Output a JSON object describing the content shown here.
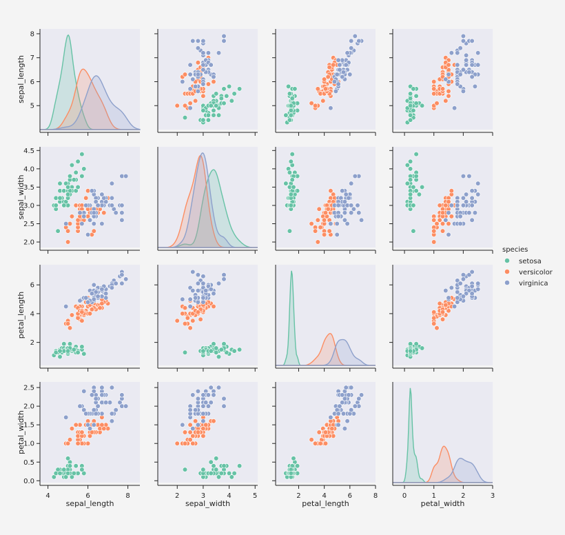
{
  "chart_data": {
    "type": "scatter",
    "title": "",
    "figure_kind": "pairplot",
    "variables": [
      "sepal_length",
      "sepal_width",
      "petal_length",
      "petal_width"
    ],
    "axis_ticks": {
      "sepal_length": [
        4,
        6,
        8
      ],
      "sepal_width": [
        2,
        3,
        4,
        5
      ],
      "petal_length": [
        2,
        4,
        6,
        8
      ],
      "petal_width": [
        0,
        1,
        2,
        3
      ]
    },
    "axis_ticks_y": {
      "sepal_length": [
        5,
        6,
        7,
        8
      ],
      "sepal_width": [
        2.0,
        2.5,
        3.0,
        3.5,
        4.0,
        4.5
      ],
      "petal_length": [
        2,
        4,
        6
      ],
      "petal_width": [
        0.0,
        0.5,
        1.0,
        1.5,
        2.0,
        2.5
      ]
    },
    "axis_ranges": {
      "sepal_length": [
        3.6,
        8.6
      ],
      "sepal_width": [
        1.25,
        5.1
      ],
      "petal_length": [
        0.2,
        8.0
      ],
      "petal_width": [
        -0.4,
        3.0
      ]
    },
    "axis_ranges_y": {
      "sepal_length": [
        4.0,
        8.2
      ],
      "sepal_width": [
        1.85,
        4.6
      ],
      "petal_length": [
        0.4,
        7.4
      ],
      "petal_width": [
        -0.05,
        2.65
      ]
    },
    "legend": {
      "title": "species",
      "placement": "right",
      "entries": [
        {
          "name": "setosa",
          "color": "#66c2a5"
        },
        {
          "name": "versicolor",
          "color": "#fc8d62"
        },
        {
          "name": "virginica",
          "color": "#8da0cb"
        }
      ]
    },
    "diag_kind": "kde",
    "series": [
      {
        "name": "setosa",
        "points": [
          [
            5.1,
            3.5,
            1.4,
            0.2
          ],
          [
            4.9,
            3.0,
            1.4,
            0.2
          ],
          [
            4.7,
            3.2,
            1.3,
            0.2
          ],
          [
            4.6,
            3.1,
            1.5,
            0.2
          ],
          [
            5.0,
            3.6,
            1.4,
            0.2
          ],
          [
            5.4,
            3.9,
            1.7,
            0.4
          ],
          [
            4.6,
            3.4,
            1.4,
            0.3
          ],
          [
            5.0,
            3.4,
            1.5,
            0.2
          ],
          [
            4.4,
            2.9,
            1.4,
            0.2
          ],
          [
            4.9,
            3.1,
            1.5,
            0.1
          ],
          [
            5.4,
            3.7,
            1.5,
            0.2
          ],
          [
            4.8,
            3.4,
            1.6,
            0.2
          ],
          [
            4.8,
            3.0,
            1.4,
            0.1
          ],
          [
            4.3,
            3.0,
            1.1,
            0.1
          ],
          [
            5.8,
            4.0,
            1.2,
            0.2
          ],
          [
            5.7,
            4.4,
            1.5,
            0.4
          ],
          [
            5.4,
            3.9,
            1.3,
            0.4
          ],
          [
            5.1,
            3.5,
            1.4,
            0.3
          ],
          [
            5.7,
            3.8,
            1.7,
            0.3
          ],
          [
            5.1,
            3.8,
            1.5,
            0.3
          ],
          [
            5.4,
            3.4,
            1.7,
            0.2
          ],
          [
            5.1,
            3.7,
            1.5,
            0.4
          ],
          [
            4.6,
            3.6,
            1.0,
            0.2
          ],
          [
            5.1,
            3.3,
            1.7,
            0.5
          ],
          [
            4.8,
            3.4,
            1.9,
            0.2
          ],
          [
            5.0,
            3.0,
            1.6,
            0.2
          ],
          [
            5.0,
            3.4,
            1.6,
            0.4
          ],
          [
            5.2,
            3.5,
            1.5,
            0.2
          ],
          [
            5.2,
            3.4,
            1.4,
            0.2
          ],
          [
            4.7,
            3.2,
            1.6,
            0.2
          ],
          [
            4.8,
            3.1,
            1.6,
            0.2
          ],
          [
            5.4,
            3.4,
            1.5,
            0.4
          ],
          [
            5.2,
            4.1,
            1.5,
            0.1
          ],
          [
            5.5,
            4.2,
            1.4,
            0.2
          ],
          [
            4.9,
            3.1,
            1.5,
            0.2
          ],
          [
            5.0,
            3.2,
            1.2,
            0.2
          ],
          [
            5.5,
            3.5,
            1.3,
            0.2
          ],
          [
            4.9,
            3.6,
            1.4,
            0.1
          ],
          [
            4.4,
            3.0,
            1.3,
            0.2
          ],
          [
            5.1,
            3.4,
            1.5,
            0.2
          ],
          [
            5.0,
            3.5,
            1.3,
            0.3
          ],
          [
            4.5,
            2.3,
            1.3,
            0.3
          ],
          [
            4.4,
            3.2,
            1.3,
            0.2
          ],
          [
            5.0,
            3.5,
            1.6,
            0.6
          ],
          [
            5.1,
            3.8,
            1.9,
            0.4
          ],
          [
            4.8,
            3.0,
            1.4,
            0.3
          ],
          [
            5.1,
            3.8,
            1.6,
            0.2
          ],
          [
            4.6,
            3.2,
            1.4,
            0.2
          ],
          [
            5.3,
            3.7,
            1.5,
            0.2
          ],
          [
            5.0,
            3.3,
            1.4,
            0.2
          ]
        ]
      },
      {
        "name": "versicolor",
        "points": [
          [
            7.0,
            3.2,
            4.7,
            1.4
          ],
          [
            6.4,
            3.2,
            4.5,
            1.5
          ],
          [
            6.9,
            3.1,
            4.9,
            1.5
          ],
          [
            5.5,
            2.3,
            4.0,
            1.3
          ],
          [
            6.5,
            2.8,
            4.6,
            1.5
          ],
          [
            5.7,
            2.8,
            4.5,
            1.3
          ],
          [
            6.3,
            3.3,
            4.7,
            1.6
          ],
          [
            4.9,
            2.4,
            3.3,
            1.0
          ],
          [
            6.6,
            2.9,
            4.6,
            1.3
          ],
          [
            5.2,
            2.7,
            3.9,
            1.4
          ],
          [
            5.0,
            2.0,
            3.5,
            1.0
          ],
          [
            5.9,
            3.0,
            4.2,
            1.5
          ],
          [
            6.0,
            2.2,
            4.0,
            1.0
          ],
          [
            6.1,
            2.9,
            4.7,
            1.4
          ],
          [
            5.6,
            2.9,
            3.6,
            1.3
          ],
          [
            6.7,
            3.1,
            4.4,
            1.4
          ],
          [
            5.6,
            3.0,
            4.5,
            1.5
          ],
          [
            5.8,
            2.7,
            4.1,
            1.0
          ],
          [
            6.2,
            2.2,
            4.5,
            1.5
          ],
          [
            5.6,
            2.5,
            3.9,
            1.1
          ],
          [
            5.9,
            3.2,
            4.8,
            1.8
          ],
          [
            6.1,
            2.8,
            4.0,
            1.3
          ],
          [
            6.3,
            2.5,
            4.9,
            1.5
          ],
          [
            6.1,
            2.8,
            4.7,
            1.2
          ],
          [
            6.4,
            2.9,
            4.3,
            1.3
          ],
          [
            6.6,
            3.0,
            4.4,
            1.4
          ],
          [
            6.8,
            2.8,
            4.8,
            1.4
          ],
          [
            6.7,
            3.0,
            5.0,
            1.7
          ],
          [
            6.0,
            2.9,
            4.5,
            1.5
          ],
          [
            5.7,
            2.6,
            3.5,
            1.0
          ],
          [
            5.5,
            2.4,
            3.8,
            1.1
          ],
          [
            5.5,
            2.4,
            3.7,
            1.0
          ],
          [
            5.8,
            2.7,
            3.9,
            1.2
          ],
          [
            6.0,
            2.7,
            5.1,
            1.6
          ],
          [
            5.4,
            3.0,
            4.5,
            1.5
          ],
          [
            6.0,
            3.4,
            4.5,
            1.6
          ],
          [
            6.7,
            3.1,
            4.7,
            1.5
          ],
          [
            6.3,
            2.3,
            4.4,
            1.3
          ],
          [
            5.6,
            3.0,
            4.1,
            1.3
          ],
          [
            5.5,
            2.5,
            4.0,
            1.3
          ],
          [
            5.5,
            2.6,
            4.4,
            1.2
          ],
          [
            6.1,
            3.0,
            4.6,
            1.4
          ],
          [
            5.8,
            2.6,
            4.0,
            1.2
          ],
          [
            5.0,
            2.3,
            3.3,
            1.0
          ],
          [
            5.6,
            2.7,
            4.2,
            1.3
          ],
          [
            5.7,
            3.0,
            4.2,
            1.2
          ],
          [
            5.7,
            2.9,
            4.2,
            1.3
          ],
          [
            6.2,
            2.9,
            4.3,
            1.3
          ],
          [
            5.1,
            2.5,
            3.0,
            1.1
          ],
          [
            5.7,
            2.8,
            4.1,
            1.3
          ]
        ]
      },
      {
        "name": "virginica",
        "points": [
          [
            6.3,
            3.3,
            6.0,
            2.5
          ],
          [
            5.8,
            2.7,
            5.1,
            1.9
          ],
          [
            7.1,
            3.0,
            5.9,
            2.1
          ],
          [
            6.3,
            2.9,
            5.6,
            1.8
          ],
          [
            6.5,
            3.0,
            5.8,
            2.2
          ],
          [
            7.6,
            3.0,
            6.6,
            2.1
          ],
          [
            4.9,
            2.5,
            4.5,
            1.7
          ],
          [
            7.3,
            2.9,
            6.3,
            1.8
          ],
          [
            6.7,
            2.5,
            5.8,
            1.8
          ],
          [
            7.2,
            3.6,
            6.1,
            2.5
          ],
          [
            6.5,
            3.2,
            5.1,
            2.0
          ],
          [
            6.4,
            2.7,
            5.3,
            1.9
          ],
          [
            6.8,
            3.0,
            5.5,
            2.1
          ],
          [
            5.7,
            2.5,
            5.0,
            2.0
          ],
          [
            5.8,
            2.8,
            5.1,
            2.4
          ],
          [
            6.4,
            3.2,
            5.3,
            2.3
          ],
          [
            6.5,
            3.0,
            5.5,
            1.8
          ],
          [
            7.7,
            3.8,
            6.7,
            2.2
          ],
          [
            7.7,
            2.6,
            6.9,
            2.3
          ],
          [
            6.0,
            2.2,
            5.0,
            1.5
          ],
          [
            6.9,
            3.2,
            5.7,
            2.3
          ],
          [
            5.6,
            2.8,
            4.9,
            2.0
          ],
          [
            7.7,
            2.8,
            6.7,
            2.0
          ],
          [
            6.3,
            2.7,
            4.9,
            1.8
          ],
          [
            6.7,
            3.3,
            5.7,
            2.1
          ],
          [
            7.2,
            3.2,
            6.0,
            1.8
          ],
          [
            6.2,
            2.8,
            4.8,
            1.8
          ],
          [
            6.1,
            3.0,
            4.9,
            1.8
          ],
          [
            6.4,
            2.8,
            5.6,
            2.1
          ],
          [
            7.2,
            3.0,
            5.8,
            1.6
          ],
          [
            7.4,
            2.8,
            6.1,
            1.9
          ],
          [
            7.9,
            3.8,
            6.4,
            2.0
          ],
          [
            6.4,
            2.8,
            5.6,
            2.2
          ],
          [
            6.3,
            2.8,
            5.1,
            1.5
          ],
          [
            6.1,
            2.6,
            5.6,
            1.4
          ],
          [
            7.7,
            3.0,
            6.1,
            2.3
          ],
          [
            6.3,
            3.4,
            5.6,
            2.4
          ],
          [
            6.4,
            3.1,
            5.5,
            1.8
          ],
          [
            6.0,
            3.0,
            4.8,
            1.8
          ],
          [
            6.9,
            3.1,
            5.4,
            2.1
          ],
          [
            6.7,
            3.1,
            5.6,
            2.4
          ],
          [
            6.9,
            3.1,
            5.1,
            2.3
          ],
          [
            5.8,
            2.7,
            5.1,
            1.9
          ],
          [
            6.8,
            3.2,
            5.9,
            2.3
          ],
          [
            6.7,
            3.3,
            5.7,
            2.5
          ],
          [
            6.7,
            3.0,
            5.2,
            2.3
          ],
          [
            6.3,
            2.5,
            5.0,
            1.9
          ],
          [
            6.5,
            3.0,
            5.2,
            2.0
          ],
          [
            6.2,
            3.4,
            5.4,
            2.3
          ],
          [
            5.9,
            3.0,
            5.1,
            1.8
          ]
        ]
      }
    ]
  }
}
